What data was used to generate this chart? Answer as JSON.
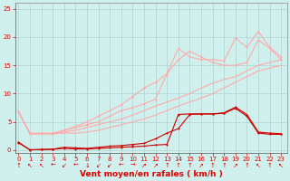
{
  "background_color": "#cff0ec",
  "grid_color": "#aacccc",
  "xlabel": "Vent moyen/en rafales ( km/h )",
  "tick_color": "#dd0000",
  "yticks": [
    0,
    5,
    10,
    15,
    20,
    25
  ],
  "xticks": [
    0,
    1,
    2,
    3,
    4,
    5,
    6,
    7,
    8,
    9,
    10,
    11,
    12,
    13,
    14,
    15,
    16,
    17,
    18,
    19,
    20,
    21,
    22,
    23
  ],
  "xlim": [
    -0.3,
    23.5
  ],
  "ylim": [
    -0.5,
    26
  ],
  "tick_fontsize": 5,
  "xlabel_fontsize": 6.5,
  "series": [
    {
      "x": [
        0,
        1,
        2,
        3,
        4,
        5,
        6,
        7,
        8,
        9,
        10,
        11,
        12,
        13,
        14,
        15,
        16,
        17,
        18,
        19,
        20,
        21,
        22,
        23
      ],
      "y": [
        1.4,
        0.05,
        0.1,
        0.15,
        0.3,
        0.2,
        0.2,
        0.3,
        0.4,
        0.5,
        0.6,
        0.7,
        0.9,
        1.0,
        6.3,
        6.4,
        6.4,
        6.4,
        6.5,
        7.4,
        6.0,
        3.0,
        2.8,
        2.8
      ],
      "color": "#cc0000",
      "lw": 0.8,
      "marker": "o",
      "ms": 1.5,
      "alpha": 1.0
    },
    {
      "x": [
        0,
        1,
        2,
        3,
        4,
        5,
        6,
        7,
        8,
        9,
        10,
        11,
        12,
        13,
        14,
        15,
        16,
        17,
        18,
        19,
        20,
        21,
        22,
        23
      ],
      "y": [
        1.3,
        0.05,
        0.1,
        0.15,
        0.5,
        0.4,
        0.3,
        0.5,
        0.7,
        0.8,
        1.0,
        1.2,
        2.0,
        3.0,
        3.8,
        6.3,
        6.4,
        6.4,
        6.6,
        7.6,
        6.3,
        3.2,
        3.0,
        2.9
      ],
      "color": "#cc0000",
      "lw": 0.8,
      "marker": "o",
      "ms": 1.5,
      "alpha": 1.0
    },
    {
      "x": [
        0,
        1,
        2,
        3,
        4,
        5,
        6,
        7,
        8,
        9,
        10,
        11,
        12,
        13,
        14,
        15,
        16,
        17,
        18,
        19,
        20,
        21,
        22,
        23
      ],
      "y": [
        6.8,
        2.9,
        2.9,
        2.9,
        3.0,
        3.0,
        3.2,
        3.5,
        4.0,
        4.5,
        5.0,
        5.5,
        6.2,
        7.0,
        7.8,
        8.5,
        9.2,
        10.0,
        11.0,
        12.0,
        13.0,
        14.0,
        14.5,
        15.0
      ],
      "color": "#ffaaaa",
      "lw": 0.8,
      "marker": null,
      "ms": 0,
      "alpha": 1.0
    },
    {
      "x": [
        0,
        1,
        2,
        3,
        4,
        5,
        6,
        7,
        8,
        9,
        10,
        11,
        12,
        13,
        14,
        15,
        16,
        17,
        18,
        19,
        20,
        21,
        22,
        23
      ],
      "y": [
        6.8,
        2.9,
        2.9,
        2.9,
        3.2,
        3.5,
        4.0,
        4.5,
        5.0,
        5.5,
        6.2,
        7.0,
        7.8,
        8.5,
        9.2,
        10.0,
        11.0,
        11.8,
        12.5,
        13.0,
        14.0,
        15.0,
        15.5,
        16.0
      ],
      "color": "#ffaaaa",
      "lw": 0.8,
      "marker": null,
      "ms": 0,
      "alpha": 1.0
    },
    {
      "x": [
        0,
        1,
        2,
        3,
        4,
        5,
        6,
        7,
        8,
        9,
        10,
        11,
        12,
        13,
        14,
        15,
        16,
        17,
        18,
        19,
        20,
        21,
        22,
        23
      ],
      "y": [
        6.8,
        2.9,
        2.9,
        2.9,
        3.5,
        4.0,
        4.5,
        5.0,
        6.0,
        7.0,
        7.5,
        8.2,
        9.0,
        13.5,
        18.0,
        16.5,
        16.0,
        16.0,
        15.8,
        19.8,
        18.2,
        21.0,
        18.2,
        16.5
      ],
      "color": "#ffaaaa",
      "lw": 0.8,
      "marker": "o",
      "ms": 1.5,
      "alpha": 1.0
    },
    {
      "x": [
        0,
        1,
        2,
        3,
        4,
        5,
        6,
        7,
        8,
        9,
        10,
        11,
        12,
        13,
        14,
        15,
        16,
        17,
        18,
        19,
        20,
        21,
        22,
        23
      ],
      "y": [
        6.8,
        3.0,
        3.0,
        3.0,
        3.5,
        4.2,
        5.0,
        6.0,
        7.0,
        8.0,
        9.5,
        11.0,
        12.0,
        13.5,
        16.0,
        17.5,
        16.5,
        15.5,
        15.0,
        15.0,
        15.5,
        19.5,
        18.0,
        16.0
      ],
      "color": "#ffaaaa",
      "lw": 0.8,
      "marker": "o",
      "ms": 1.5,
      "alpha": 1.0
    }
  ],
  "wind_arrows": [
    "↑",
    "↖",
    "↖",
    "←",
    "↙",
    "←",
    "↓",
    "↙",
    "↙",
    "←",
    "→",
    "↗",
    "↗",
    "↑",
    "↑",
    "↑",
    "↗",
    "↑",
    "↑",
    "↗",
    "↑",
    "↖",
    "↑",
    "↖"
  ]
}
